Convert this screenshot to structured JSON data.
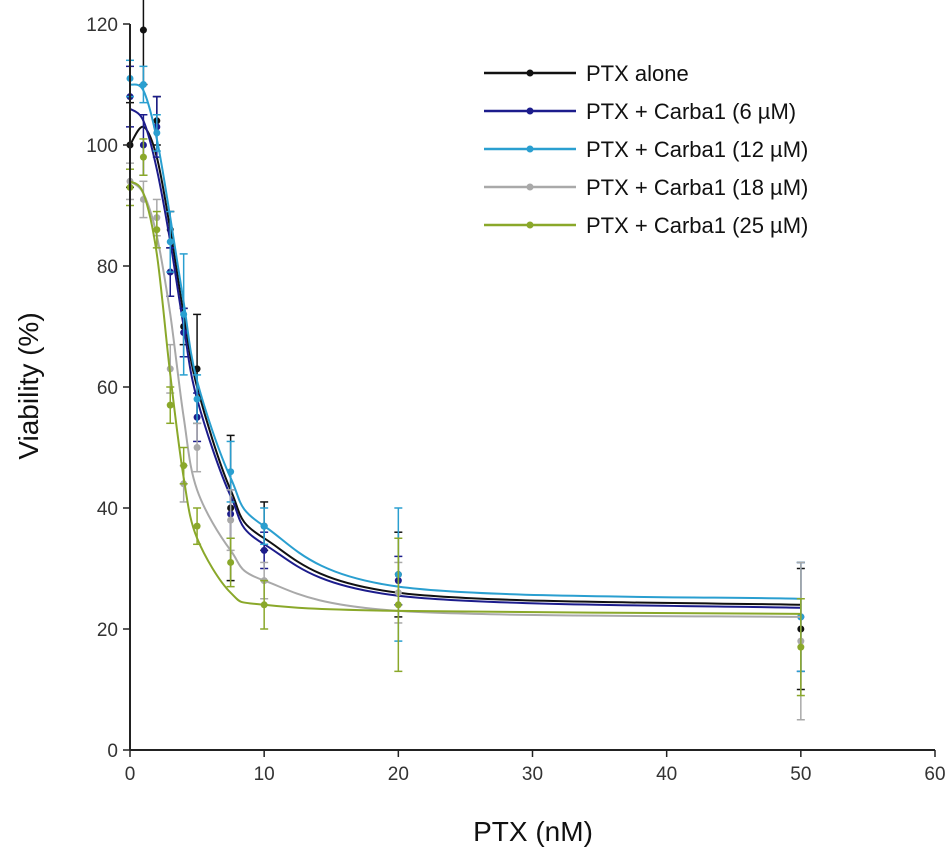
{
  "chart_data": {
    "type": "line",
    "xlabel": "PTX (nM)",
    "ylabel": "Viability (%)",
    "xlim": [
      0,
      60
    ],
    "ylim": [
      0,
      120
    ],
    "x_ticks": [
      "0",
      "10",
      "20",
      "30",
      "40",
      "50",
      "60"
    ],
    "y_ticks": [
      "0",
      "20",
      "40",
      "60",
      "80",
      "100",
      "120"
    ],
    "grid": false,
    "legend_position": "top-right",
    "x": [
      0,
      1,
      2,
      3,
      4,
      5,
      7.5,
      10,
      20,
      50
    ],
    "series": [
      {
        "name": "PTX alone",
        "color": "#111111",
        "values": [
          100,
          119,
          104,
          86,
          70,
          63,
          40,
          37,
          29,
          20
        ],
        "errors": [
          7,
          9,
          4,
          3,
          3,
          9,
          12,
          4,
          7,
          10
        ],
        "fit": [
          100,
          103,
          98,
          86,
          72,
          60,
          43,
          35,
          26,
          24
        ]
      },
      {
        "name": "PTX + Carba1 (6 µM)",
        "color": "#1c1c8c",
        "values": [
          108,
          100,
          103,
          79,
          69,
          55,
          39,
          33,
          28,
          22
        ],
        "errors": [
          5,
          5,
          5,
          4,
          4,
          4,
          4,
          3,
          4,
          9
        ],
        "fit": [
          106,
          104,
          96,
          84,
          70,
          58,
          42,
          34,
          25.5,
          23.5
        ]
      },
      {
        "name": "PTX + Carba1 (12 µM)",
        "color": "#2a9fd0",
        "values": [
          111,
          110,
          102,
          84,
          72,
          58,
          46,
          37,
          29,
          22
        ],
        "errors": [
          3,
          3,
          3,
          5,
          10,
          4,
          5,
          3,
          11,
          9
        ],
        "fit": [
          110,
          109,
          101,
          88,
          74,
          61,
          45,
          37,
          27,
          25
        ]
      },
      {
        "name": "PTX + Carba1 (18 µM)",
        "color": "#a9a9a9",
        "values": [
          94,
          91,
          88,
          63,
          44,
          50,
          38,
          28,
          26,
          18
        ],
        "errors": [
          3,
          3,
          3,
          4,
          3,
          4,
          5,
          3,
          5,
          13
        ],
        "fit": [
          94,
          92,
          85,
          72,
          55,
          43,
          33,
          28,
          23,
          22
        ]
      },
      {
        "name": "PTX + Carba1 (25 µM)",
        "color": "#8aa82a",
        "values": [
          93,
          98,
          86,
          57,
          47,
          37,
          31,
          24,
          24,
          17
        ],
        "errors": [
          3,
          3,
          3,
          3,
          3,
          3,
          4,
          4,
          11,
          8
        ],
        "fit": [
          94,
          92,
          82,
          62,
          45,
          35,
          26,
          24,
          23,
          22.5
        ]
      }
    ]
  }
}
